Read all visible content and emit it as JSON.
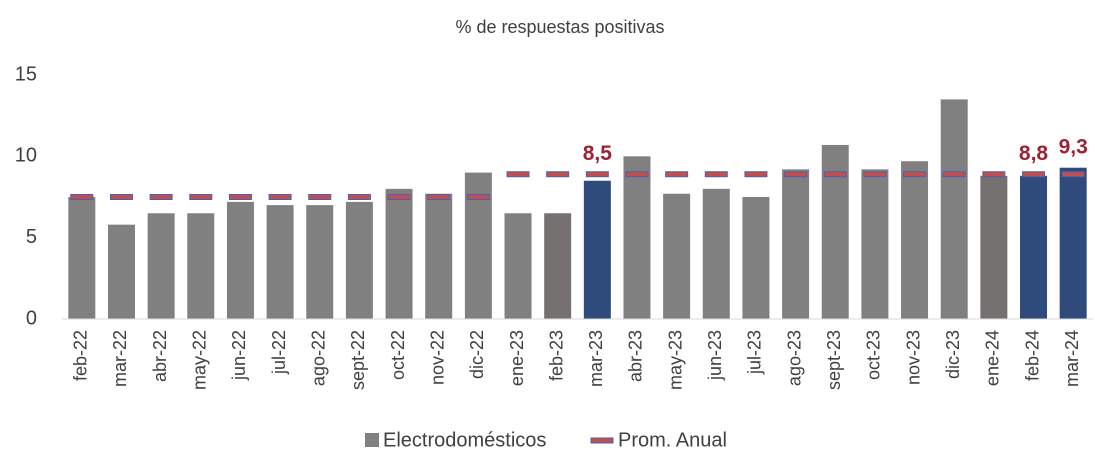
{
  "chart_data": {
    "type": "bar",
    "title": "% de respuestas positivas",
    "categories": [
      "feb-22",
      "mar-22",
      "abr-22",
      "may-22",
      "jun-22",
      "jul-22",
      "ago-22",
      "sept-22",
      "oct-22",
      "nov-22",
      "dic-22",
      "ene-23",
      "feb-23",
      "mar-23",
      "abr-23",
      "may-23",
      "jun-23",
      "jul-23",
      "ago-23",
      "sept-23",
      "oct-23",
      "nov-23",
      "dic-23",
      "ene-24",
      "feb-24",
      "mar-24"
    ],
    "series": [
      {
        "name": "Electrodomésticos",
        "color": "#808080",
        "colors": [
          "#808080",
          "#808080",
          "#808080",
          "#808080",
          "#808080",
          "#808080",
          "#808080",
          "#808080",
          "#808080",
          "#808080",
          "#808080",
          "#808080",
          "#767171",
          "#2f4b7c",
          "#808080",
          "#808080",
          "#808080",
          "#808080",
          "#808080",
          "#808080",
          "#808080",
          "#808080",
          "#808080",
          "#767171",
          "#2f4b7c",
          "#2f4b7c"
        ],
        "values": [
          7.5,
          5.8,
          6.5,
          6.5,
          7.2,
          7.0,
          7.0,
          7.2,
          8.0,
          7.7,
          9.0,
          6.5,
          6.5,
          8.5,
          10.0,
          7.7,
          8.0,
          7.5,
          9.2,
          10.7,
          9.2,
          9.7,
          13.5,
          8.8,
          8.8,
          9.3
        ],
        "value_labels": [
          null,
          null,
          null,
          null,
          null,
          null,
          null,
          null,
          null,
          null,
          null,
          null,
          null,
          "8,5",
          null,
          null,
          null,
          null,
          null,
          null,
          null,
          null,
          null,
          null,
          "8,8",
          "9,3"
        ],
        "label_color": "#9b2335"
      },
      {
        "name": "Prom. Anual",
        "color": "#c0504d",
        "edge_color": "#4f5fb0",
        "values": [
          7.5,
          7.5,
          7.5,
          7.5,
          7.5,
          7.5,
          7.5,
          7.5,
          7.5,
          7.5,
          7.5,
          8.9,
          8.9,
          8.9,
          8.9,
          8.9,
          8.9,
          8.9,
          8.9,
          8.9,
          8.9,
          8.9,
          8.9,
          8.9,
          8.9,
          8.9
        ]
      }
    ],
    "ylim": [
      0,
      15
    ],
    "yticks": [
      0,
      5,
      10,
      15
    ],
    "grid": false
  }
}
